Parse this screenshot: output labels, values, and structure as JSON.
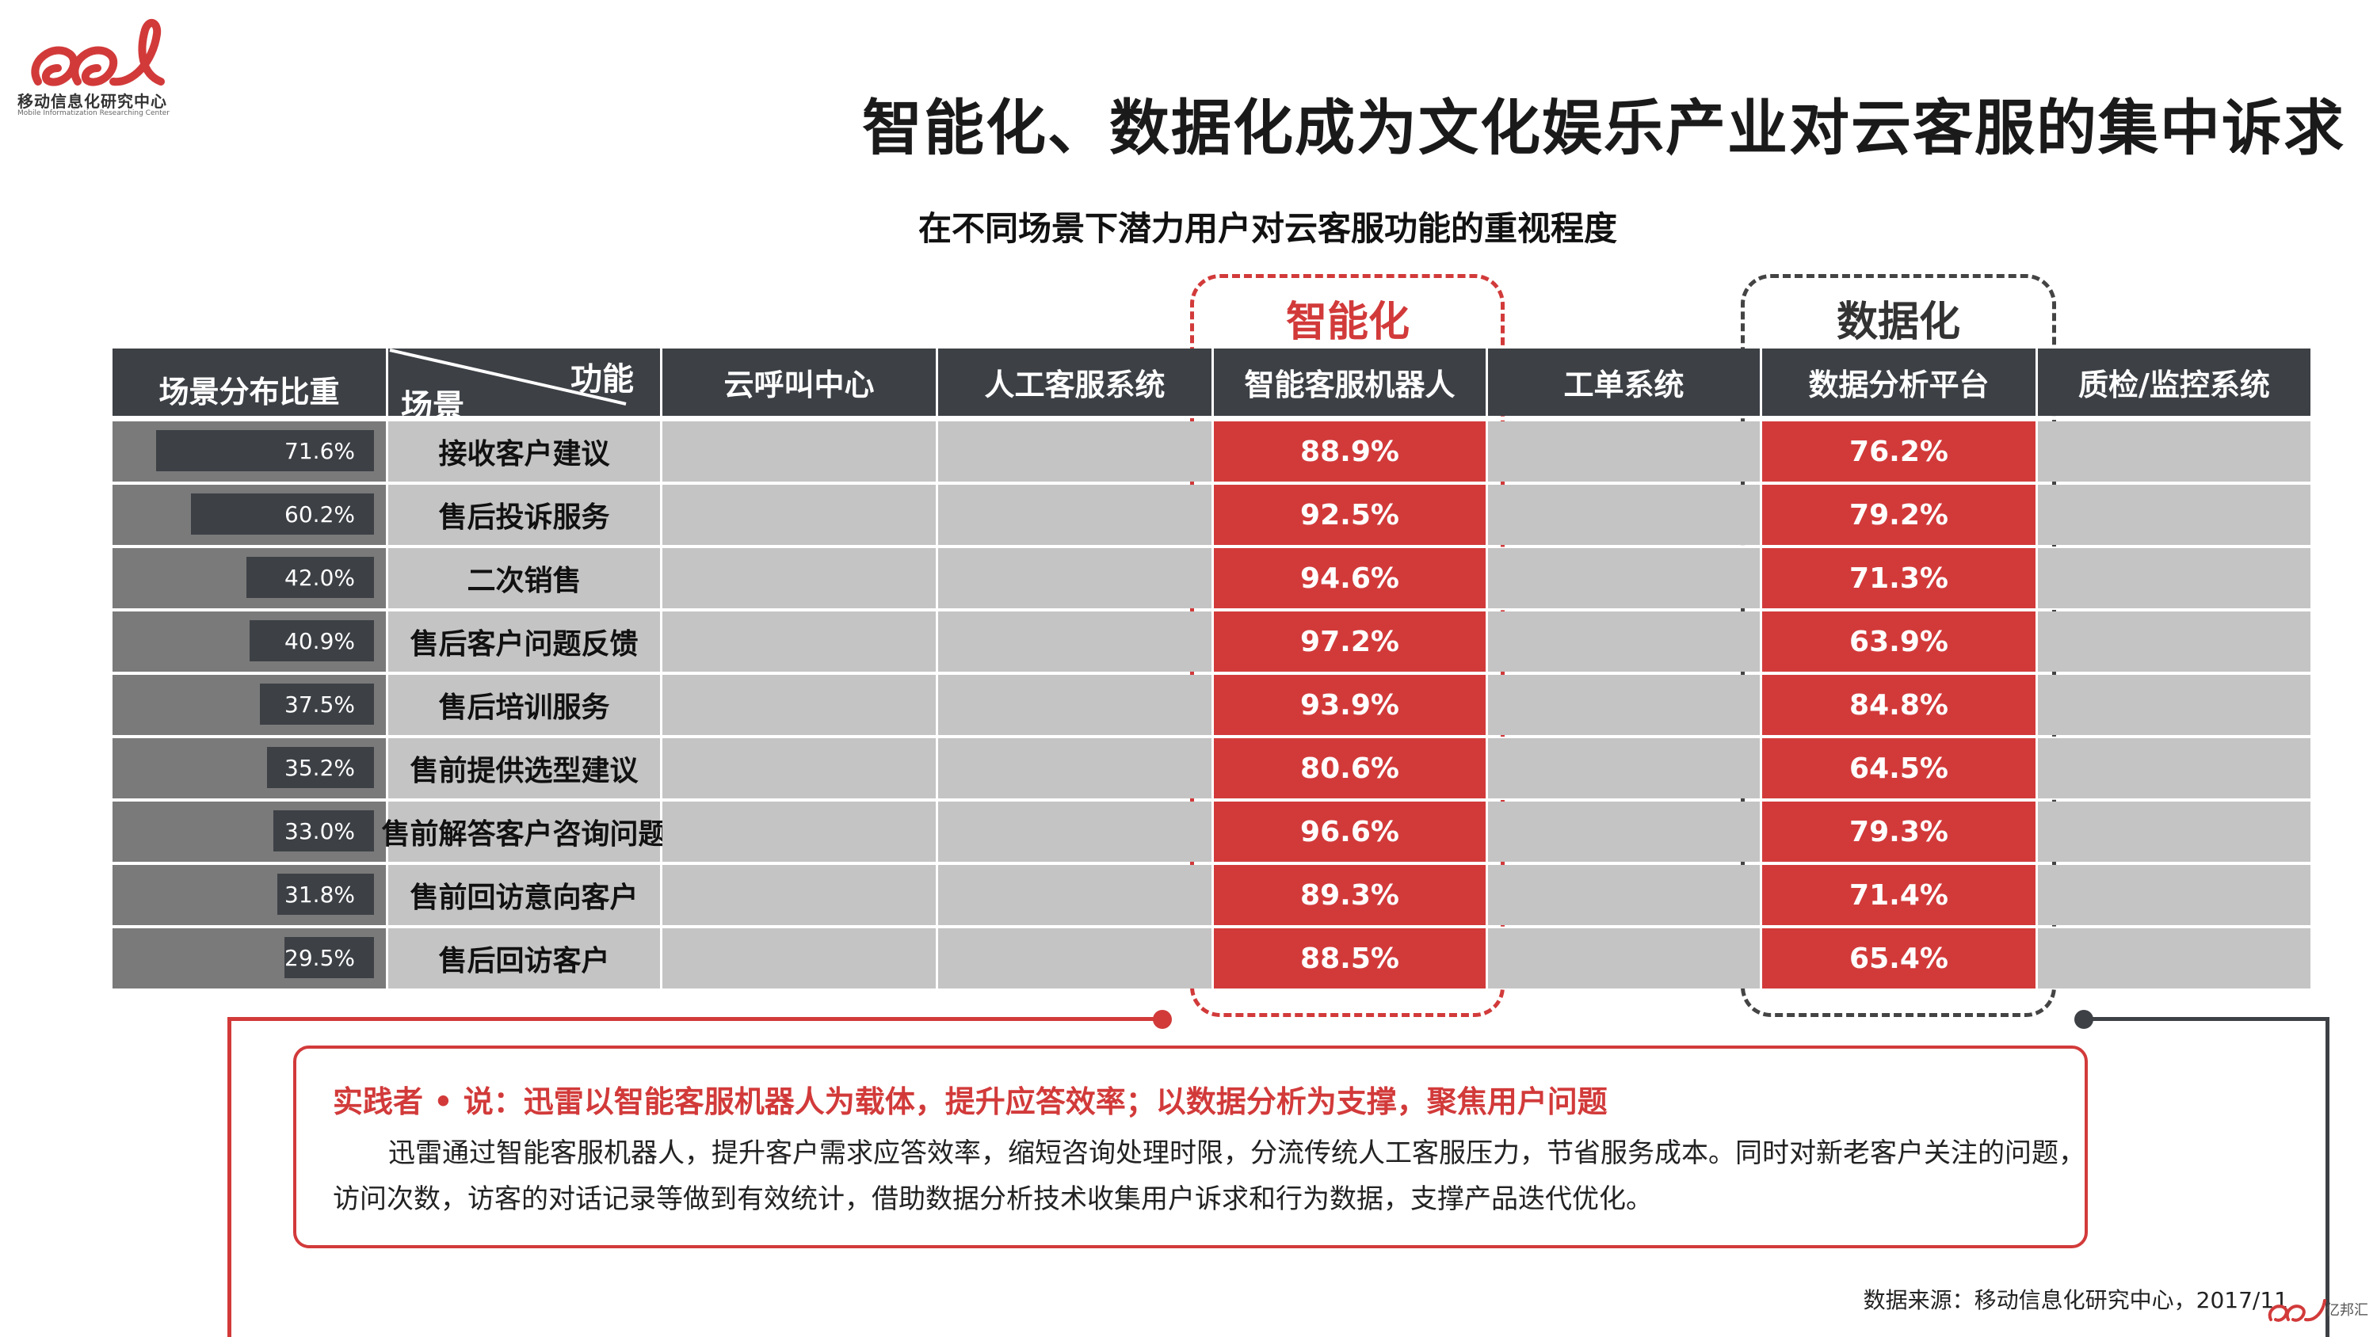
{
  "logo": {
    "name": "移动信息化研究中心",
    "sub": "Mobile Informatization Researching Center"
  },
  "page_title": "智能化、数据化成为文化娱乐产业对云客服的集中诉求",
  "table_title": "在不同场景下潜力用户对云客服功能的重视程度",
  "groups": {
    "smart": "智能化",
    "data": "数据化"
  },
  "colors": {
    "accent_red": "#d23a3a",
    "header_dark": "#3d4146",
    "cell_grey": "#c4c4c4",
    "weight_grey": "#7a7a7a"
  },
  "chart_data": {
    "type": "table",
    "title": "在不同场景下潜力用户对云客服功能的重视程度",
    "header": {
      "weight": "场景分布比重",
      "corner_function": "功能",
      "corner_scene": "场景",
      "columns": [
        "云呼叫中心",
        "人工客服系统",
        "智能客服机器人",
        "工单系统",
        "数据分析平台",
        "质检/监控系统"
      ]
    },
    "rows": [
      {
        "scene": "接收客户建议",
        "weight": "71.6%",
        "weight_value": 71.6,
        "smart_bot": "88.9%",
        "analytics": "76.2%"
      },
      {
        "scene": "售后投诉服务",
        "weight": "60.2%",
        "weight_value": 60.2,
        "smart_bot": "92.5%",
        "analytics": "79.2%"
      },
      {
        "scene": "二次销售",
        "weight": "42.0%",
        "weight_value": 42.0,
        "smart_bot": "94.6%",
        "analytics": "71.3%"
      },
      {
        "scene": "售后客户问题反馈",
        "weight": "40.9%",
        "weight_value": 40.9,
        "smart_bot": "97.2%",
        "analytics": "63.9%"
      },
      {
        "scene": "售后培训服务",
        "weight": "37.5%",
        "weight_value": 37.5,
        "smart_bot": "93.9%",
        "analytics": "84.8%"
      },
      {
        "scene": "售前提供选型建议",
        "weight": "35.2%",
        "weight_value": 35.2,
        "smart_bot": "80.6%",
        "analytics": "64.5%"
      },
      {
        "scene": "售前解答客户咨询问题",
        "weight": "33.0%",
        "weight_value": 33.0,
        "smart_bot": "96.6%",
        "analytics": "79.3%"
      },
      {
        "scene": "售前回访意向客户",
        "weight": "31.8%",
        "weight_value": 31.8,
        "smart_bot": "89.3%",
        "analytics": "71.4%"
      },
      {
        "scene": "售后回访客户",
        "weight": "29.5%",
        "weight_value": 29.5,
        "smart_bot": "88.5%",
        "analytics": "65.4%"
      }
    ]
  },
  "callout": {
    "title": "实践者 • 说：迅雷以智能客服机器人为载体，提升应答效率；以数据分析为支撑，聚焦用户问题",
    "line1": "迅雷通过智能客服机器人，提升客户需求应答效率，缩短咨询处理时限，分流传统人工客服压力，节省服务成本。同时对新老客户关注的问题，",
    "line2": "访问次数，访客的对话记录等做到有效统计，借助数据分析技术收集用户诉求和行为数据，支撑产品迭代优化。"
  },
  "source": "数据来源：移动信息化研究中心，2017/11",
  "watermark": {
    "text": "亿邦汇",
    "logo": "ee-logo-icon"
  }
}
